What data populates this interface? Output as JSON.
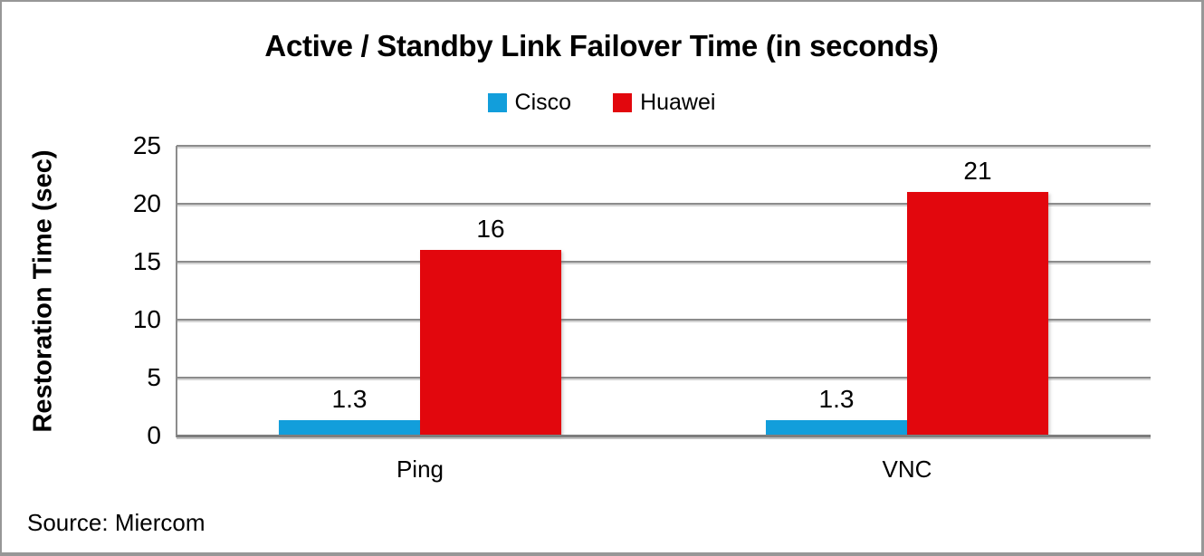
{
  "page": {
    "background": "#FFFFFF",
    "border_color": "#979797"
  },
  "chart_data": {
    "type": "bar",
    "title": "Active / Standby Link Failover Time (in seconds)",
    "ylabel": "Restoration Time (sec)",
    "xlabel": "",
    "categories": [
      "Ping",
      "VNC"
    ],
    "series": [
      {
        "name": "Cisco",
        "color": "#129EDB",
        "values": [
          1.3,
          1.3
        ]
      },
      {
        "name": "Huawei",
        "color": "#E2070D",
        "values": [
          16,
          21
        ]
      }
    ],
    "data_labels": [
      [
        "1.3",
        "1.3"
      ],
      [
        "16",
        "21"
      ]
    ],
    "ylim": [
      0,
      25
    ],
    "yticks": [
      0,
      5,
      10,
      15,
      20,
      25
    ],
    "grid": true,
    "gridline_color": "#8C8C8C",
    "legend_position": "top-center",
    "text_color": "#000000"
  },
  "source_note": "Source: Miercom"
}
